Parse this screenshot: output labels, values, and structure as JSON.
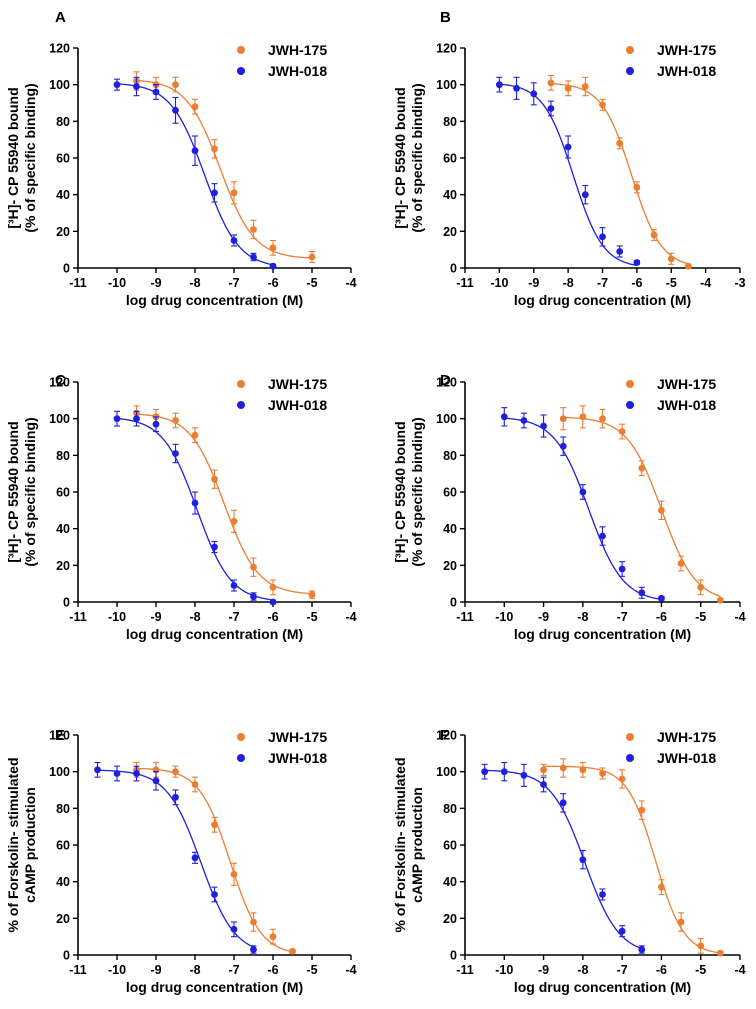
{
  "chart_data": [
    {
      "type": "scatter",
      "panel_label": "A",
      "xlabel": "log drug concentration (M)",
      "ylabel_lines": [
        "[³H]- CP 55940 bound",
        "(% of specific binding)"
      ],
      "xlim": [
        -11,
        -4
      ],
      "ylim": [
        0,
        120
      ],
      "xticks": [
        -11,
        -10,
        -9,
        -8,
        -7,
        -6,
        -5,
        -4
      ],
      "yticks": [
        0,
        20,
        40,
        60,
        80,
        100,
        120
      ],
      "legend_position": "top-right",
      "series": [
        {
          "name": "JWH-175",
          "color": "#ED7D31",
          "x": [
            -9.5,
            -9,
            -8.5,
            -8,
            -7.5,
            -7,
            -6.5,
            -6,
            -5
          ],
          "y": [
            102,
            100,
            100,
            88,
            65,
            41,
            21,
            11,
            6
          ],
          "err": [
            5,
            4,
            4,
            4,
            5,
            6,
            5,
            4,
            3
          ],
          "fit": {
            "top": 103,
            "bottom": 5,
            "logIC50": -7.35,
            "hill": 1
          }
        },
        {
          "name": "JWH-018",
          "color": "#1F1FE0",
          "x": [
            -10,
            -9.5,
            -9,
            -8.5,
            -8,
            -7.5,
            -7,
            -6.5,
            -6
          ],
          "y": [
            100,
            99,
            96,
            86,
            64,
            41,
            15,
            6,
            1
          ],
          "err": [
            3,
            5,
            4,
            7,
            8,
            5,
            3,
            2,
            1
          ],
          "fit": {
            "top": 101,
            "bottom": 0,
            "logIC50": -7.75,
            "hill": 1
          }
        }
      ]
    },
    {
      "type": "scatter",
      "panel_label": "B",
      "xlabel": "log drug concentration (M)",
      "ylabel_lines": [
        "[³H]- CP 55940 bound",
        "(% of specific binding)"
      ],
      "xlim": [
        -11,
        -3
      ],
      "ylim": [
        0,
        120
      ],
      "xticks": [
        -11,
        -10,
        -9,
        -8,
        -7,
        -6,
        -5,
        -4,
        -3
      ],
      "yticks": [
        0,
        20,
        40,
        60,
        80,
        100,
        120
      ],
      "legend_position": "top-right",
      "series": [
        {
          "name": "JWH-175",
          "color": "#ED7D31",
          "x": [
            -8.5,
            -8,
            -7.5,
            -7,
            -6.5,
            -6,
            -5.5,
            -5,
            -4.5
          ],
          "y": [
            101,
            98,
            99,
            89,
            68,
            44,
            18,
            5,
            1
          ],
          "err": [
            4,
            4,
            5,
            3,
            3,
            3,
            3,
            3,
            1
          ],
          "fit": {
            "top": 101,
            "bottom": 0,
            "logIC50": -6.15,
            "hill": 1
          }
        },
        {
          "name": "JWH-018",
          "color": "#1F1FE0",
          "x": [
            -10,
            -9.5,
            -9,
            -8.5,
            -8,
            -7.5,
            -7,
            -6.5,
            -6
          ],
          "y": [
            100,
            98,
            95,
            87,
            66,
            40,
            17,
            9,
            3
          ],
          "err": [
            4,
            6,
            6,
            4,
            6,
            5,
            5,
            3,
            1
          ],
          "fit": {
            "top": 101,
            "bottom": 0,
            "logIC50": -7.85,
            "hill": 1
          }
        }
      ]
    },
    {
      "type": "scatter",
      "panel_label": "C",
      "xlabel": "log drug concentration (M)",
      "ylabel_lines": [
        "[³H]- CP 55940 bound",
        "(% of specific binding)"
      ],
      "xlim": [
        -11,
        -4
      ],
      "ylim": [
        0,
        120
      ],
      "xticks": [
        -11,
        -10,
        -9,
        -8,
        -7,
        -6,
        -5,
        -4
      ],
      "yticks": [
        0,
        20,
        40,
        60,
        80,
        100,
        120
      ],
      "legend_position": "top-right",
      "series": [
        {
          "name": "JWH-175",
          "color": "#ED7D31",
          "x": [
            -9.5,
            -9,
            -8.5,
            -8,
            -7.5,
            -7,
            -6.5,
            -6,
            -5
          ],
          "y": [
            103,
            101,
            99,
            91,
            67,
            44,
            19,
            8,
            4
          ],
          "err": [
            4,
            4,
            4,
            4,
            5,
            6,
            5,
            4,
            2
          ],
          "fit": {
            "top": 103,
            "bottom": 4,
            "logIC50": -7.25,
            "hill": 1
          }
        },
        {
          "name": "JWH-018",
          "color": "#1F1FE0",
          "x": [
            -10,
            -9.5,
            -9,
            -8.5,
            -8,
            -7.5,
            -7,
            -6.5,
            -6
          ],
          "y": [
            100,
            100,
            97,
            81,
            54,
            30,
            9,
            3,
            0
          ],
          "err": [
            4,
            4,
            4,
            5,
            6,
            3,
            3,
            2,
            1
          ],
          "fit": {
            "top": 101,
            "bottom": 0,
            "logIC50": -7.95,
            "hill": 1
          }
        }
      ]
    },
    {
      "type": "scatter",
      "panel_label": "D",
      "xlabel": "log drug concentration (M)",
      "ylabel_lines": [
        "[³H]- CP 55940 bound",
        "(% of specific binding)"
      ],
      "xlim": [
        -11,
        -4
      ],
      "ylim": [
        0,
        120
      ],
      "xticks": [
        -11,
        -10,
        -9,
        -8,
        -7,
        -6,
        -5,
        -4
      ],
      "yticks": [
        0,
        20,
        40,
        60,
        80,
        100,
        120
      ],
      "legend_position": "top-right",
      "series": [
        {
          "name": "JWH-175",
          "color": "#ED7D31",
          "x": [
            -8.5,
            -8,
            -7.5,
            -7,
            -6.5,
            -6,
            -5.5,
            -5,
            -4.5
          ],
          "y": [
            100,
            101,
            100,
            93,
            73,
            50,
            21,
            8,
            1
          ],
          "err": [
            6,
            6,
            5,
            4,
            4,
            5,
            4,
            4,
            1
          ],
          "fit": {
            "top": 101,
            "bottom": 0,
            "logIC50": -6.0,
            "hill": 1
          }
        },
        {
          "name": "JWH-018",
          "color": "#1F1FE0",
          "x": [
            -10,
            -9.5,
            -9,
            -8.5,
            -8,
            -7.5,
            -7,
            -6.5,
            -6
          ],
          "y": [
            101,
            99,
            96,
            85,
            60,
            36,
            18,
            5,
            2
          ],
          "err": [
            5,
            4,
            6,
            5,
            4,
            5,
            4,
            3,
            1
          ],
          "fit": {
            "top": 101,
            "bottom": 0,
            "logIC50": -7.85,
            "hill": 1
          }
        }
      ]
    },
    {
      "type": "scatter",
      "panel_label": "E",
      "xlabel": "log drug concentration (M)",
      "ylabel_lines": [
        "% of Forskolin- stimulated",
        "cAMP production"
      ],
      "xlim": [
        -11,
        -4
      ],
      "ylim": [
        0,
        120
      ],
      "xticks": [
        -11,
        -10,
        -9,
        -8,
        -7,
        -6,
        -5,
        -4
      ],
      "yticks": [
        0,
        20,
        40,
        60,
        80,
        100,
        120
      ],
      "legend_position": "top-right",
      "series": [
        {
          "name": "JWH-175",
          "color": "#ED7D31",
          "x": [
            -9.5,
            -9,
            -8.5,
            -8,
            -7.5,
            -7,
            -6.5,
            -6,
            -5.5
          ],
          "y": [
            101,
            101,
            100,
            93,
            71,
            44,
            18,
            10,
            2
          ],
          "err": [
            4,
            4,
            3,
            4,
            4,
            6,
            5,
            4,
            1
          ],
          "fit": {
            "top": 102,
            "bottom": 0,
            "logIC50": -7.1,
            "hill": 1.1
          }
        },
        {
          "name": "JWH-018",
          "color": "#1F1FE0",
          "x": [
            -10.5,
            -10,
            -9.5,
            -9,
            -8.5,
            -8,
            -7.5,
            -7,
            -6.5
          ],
          "y": [
            101,
            99,
            99,
            95,
            86,
            53,
            33,
            14,
            3
          ],
          "err": [
            4,
            4,
            4,
            5,
            4,
            3,
            4,
            4,
            2
          ],
          "fit": {
            "top": 101,
            "bottom": 0,
            "logIC50": -7.85,
            "hill": 1
          }
        }
      ]
    },
    {
      "type": "scatter",
      "panel_label": "F",
      "xlabel": "log drug concentration (M)",
      "ylabel_lines": [
        "% of Forskolin- stimulated",
        "cAMP production"
      ],
      "xlim": [
        -11,
        -4
      ],
      "ylim": [
        0,
        120
      ],
      "xticks": [
        -11,
        -10,
        -9,
        -8,
        -7,
        -6,
        -5,
        -4
      ],
      "yticks": [
        0,
        20,
        40,
        60,
        80,
        100,
        120
      ],
      "legend_position": "top-right",
      "series": [
        {
          "name": "JWH-175",
          "color": "#ED7D31",
          "x": [
            -9,
            -8.5,
            -8,
            -7.5,
            -7,
            -6.5,
            -6,
            -5.5,
            -5,
            -4.5
          ],
          "y": [
            101,
            102,
            101,
            99,
            96,
            79,
            37,
            18,
            5,
            1
          ],
          "err": [
            3,
            5,
            4,
            3,
            5,
            5,
            4,
            5,
            4,
            1
          ],
          "fit": {
            "top": 103,
            "bottom": 0,
            "logIC50": -6.15,
            "hill": 1.2
          }
        },
        {
          "name": "JWH-018",
          "color": "#1F1FE0",
          "x": [
            -10.5,
            -10,
            -9.5,
            -9,
            -8.5,
            -8,
            -7.5,
            -7,
            -6.5
          ],
          "y": [
            100,
            100,
            98,
            93,
            83,
            52,
            33,
            13,
            3
          ],
          "err": [
            4,
            5,
            6,
            4,
            5,
            5,
            3,
            3,
            2
          ],
          "fit": {
            "top": 101,
            "bottom": 0,
            "logIC50": -7.95,
            "hill": 1
          }
        }
      ]
    }
  ]
}
